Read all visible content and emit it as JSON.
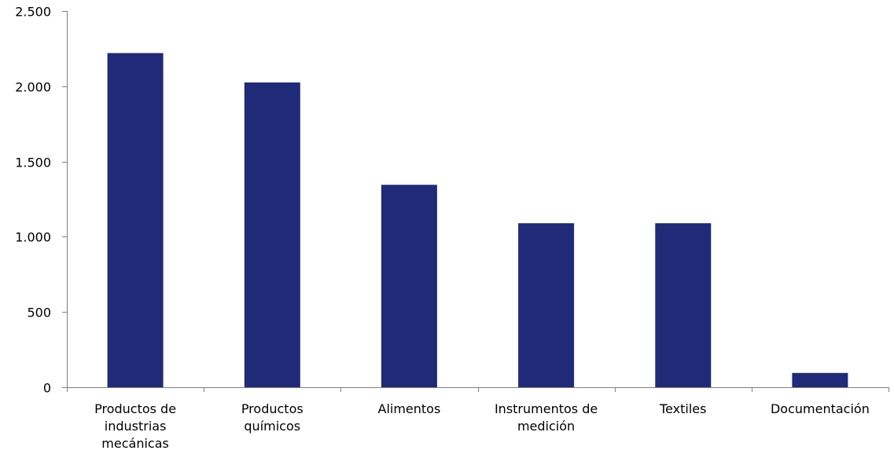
{
  "chart_data": {
    "type": "bar",
    "categories": [
      [
        "Productos de",
        "industrias",
        "mecánicas"
      ],
      [
        "Productos",
        "químicos"
      ],
      [
        "Alimentos"
      ],
      [
        "Instrumentos de",
        "medición"
      ],
      [
        "Textiles"
      ],
      [
        "Documentación"
      ]
    ],
    "values": [
      2220,
      2025,
      1345,
      1090,
      1090,
      95
    ],
    "y_tick_labels": [
      "0",
      "500",
      "1.000",
      "1.500",
      "2.000",
      "2.500"
    ],
    "y_tick_values": [
      0,
      500,
      1000,
      1500,
      2000,
      2500
    ],
    "ylim": [
      0,
      2500
    ],
    "title": "",
    "xlabel": "",
    "ylabel": "",
    "grid": false,
    "legend": "none",
    "bar_color": "#1F2A78",
    "axis_color": "#808080"
  }
}
